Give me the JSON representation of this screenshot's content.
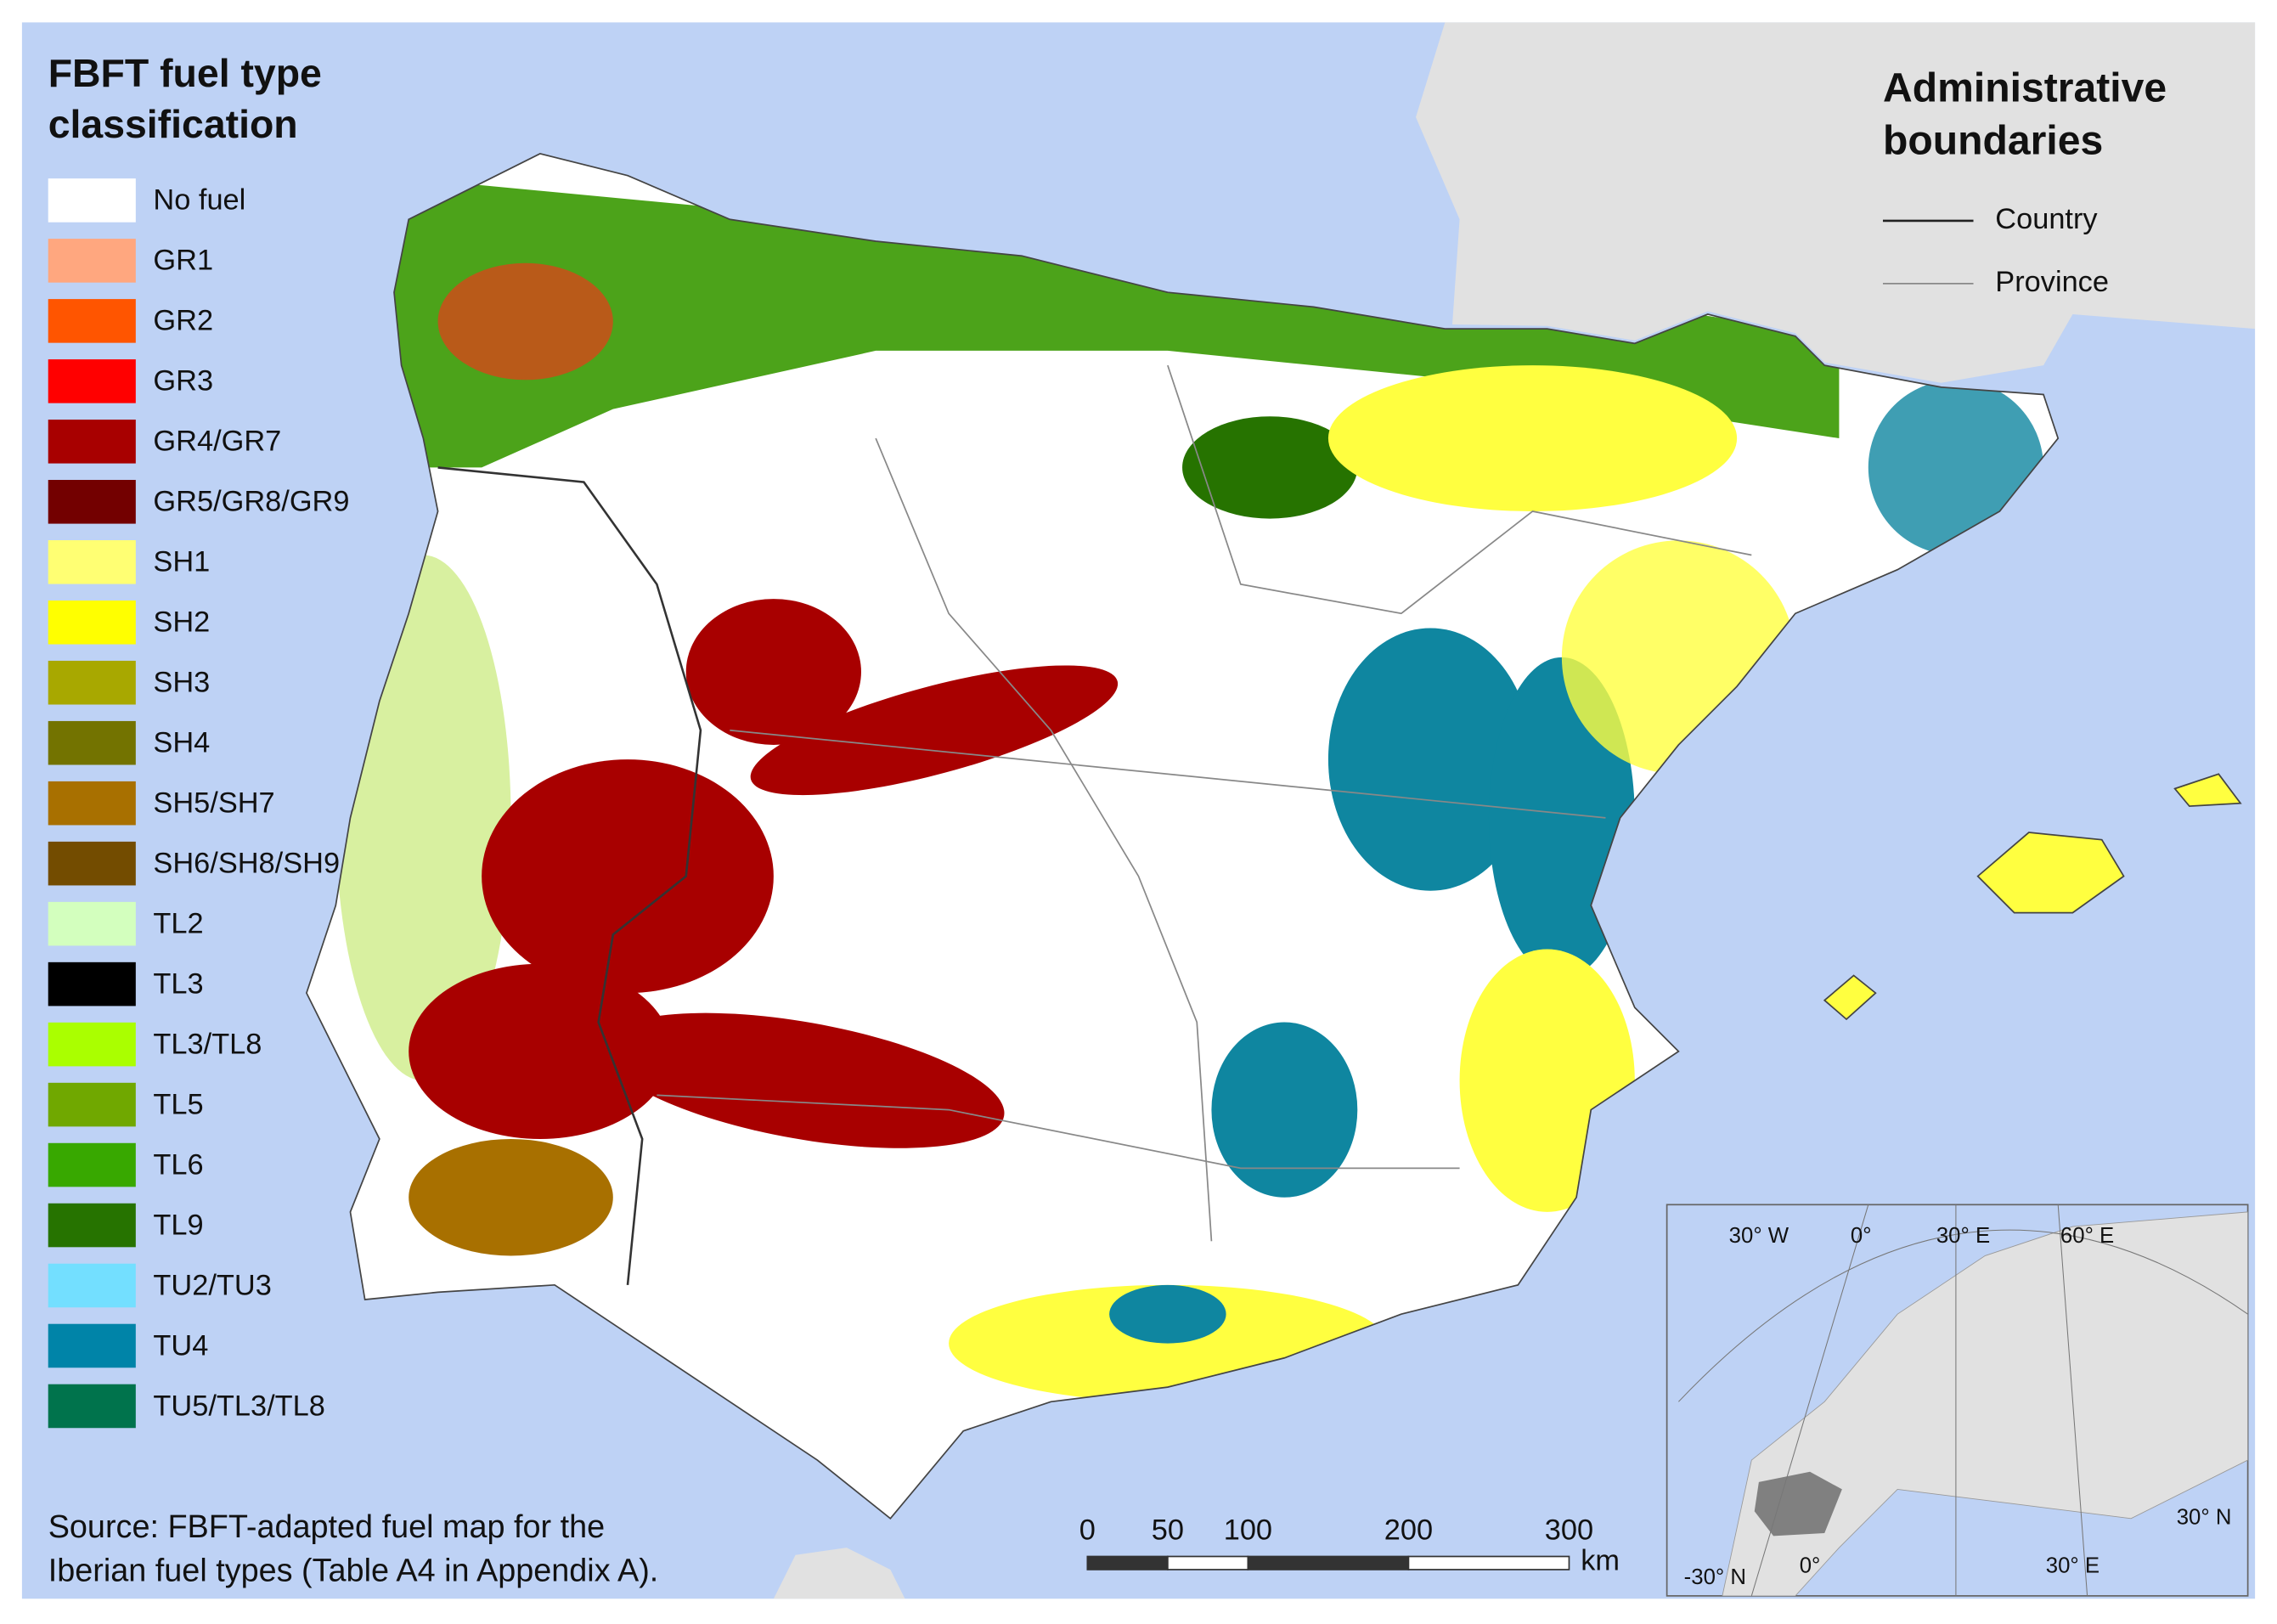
{
  "legend": {
    "title_lines": [
      "FBFT fuel type",
      "classification"
    ],
    "items": [
      {
        "label": "No fuel",
        "color": "#ffffff"
      },
      {
        "label": "GR1",
        "color": "#ffa77f"
      },
      {
        "label": "GR2",
        "color": "#ff5500"
      },
      {
        "label": "GR3",
        "color": "#ff0000"
      },
      {
        "label": "GR4/GR7",
        "color": "#a80000"
      },
      {
        "label": "GR5/GR8/GR9",
        "color": "#730000"
      },
      {
        "label": "SH1",
        "color": "#ffff73"
      },
      {
        "label": "SH2",
        "color": "#ffff00"
      },
      {
        "label": "SH3",
        "color": "#a8a800"
      },
      {
        "label": "SH4",
        "color": "#737300"
      },
      {
        "label": "SH5/SH7",
        "color": "#a87000"
      },
      {
        "label": "SH6/SH8/SH9",
        "color": "#734c00"
      },
      {
        "label": "TL2",
        "color": "#d3ffbe"
      },
      {
        "label": "TL3",
        "color": "#000000"
      },
      {
        "label": "TL3/TL8",
        "color": "#aaff00"
      },
      {
        "label": "TL5",
        "color": "#70a800"
      },
      {
        "label": "TL6",
        "color": "#38a800"
      },
      {
        "label": "TL9",
        "color": "#267300"
      },
      {
        "label": "TU2/TU3",
        "color": "#73dfff"
      },
      {
        "label": "TU4",
        "color": "#0084a8"
      },
      {
        "label": "TU5/TL3/TL8",
        "color": "#00734c"
      }
    ]
  },
  "boundaries": {
    "title_lines": [
      "Administrative",
      "boundaries"
    ],
    "items": [
      {
        "label": "Country",
        "color": "#222222"
      },
      {
        "label": "Province",
        "color": "#888888"
      }
    ]
  },
  "source": [
    "Source: FBFT-adapted fuel map for the",
    "Iberian fuel types (Table A4 in Appendix A)."
  ],
  "scale_bar": {
    "ticks": [
      0,
      50,
      100,
      200,
      300
    ],
    "unit": "km"
  },
  "inset": {
    "labels": [
      "30° W",
      "0°",
      "30° E",
      "60° E",
      "30° N",
      "-30° N",
      "0°",
      "30° E"
    ]
  }
}
